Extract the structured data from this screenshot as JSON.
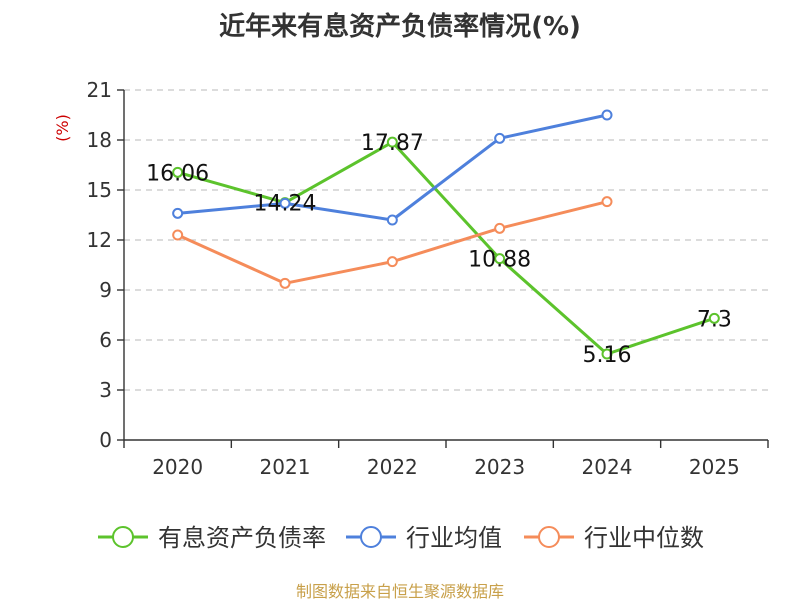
{
  "chart_data": {
    "type": "line",
    "title": "近年来有息资产负债率情况(%)",
    "ylabel": "(%)",
    "categories": [
      "2020",
      "2021",
      "2022",
      "2023",
      "2024",
      "2025"
    ],
    "ylim": [
      0,
      21
    ],
    "yticks": [
      "0",
      "3",
      "6",
      "9",
      "12",
      "15",
      "18",
      "21"
    ],
    "grid": true,
    "legend_position": "bottom",
    "series": [
      {
        "name": "有息资产负债率",
        "color": "#5cc32c",
        "values": [
          16.06,
          14.24,
          17.87,
          10.88,
          5.16,
          7.3
        ],
        "labels": [
          "16.06",
          "14.24",
          "17.87",
          "10.88",
          "5.16",
          "7.3"
        ]
      },
      {
        "name": "行业均值",
        "color": "#4e80dc",
        "values": [
          13.6,
          14.2,
          13.2,
          18.1,
          19.5,
          null
        ],
        "labels": []
      },
      {
        "name": "行业中位数",
        "color": "#f58c5a",
        "values": [
          12.3,
          9.4,
          10.7,
          12.7,
          14.3,
          null
        ],
        "labels": []
      }
    ]
  },
  "footer": {
    "source": "制图数据来自恒生聚源数据库"
  }
}
